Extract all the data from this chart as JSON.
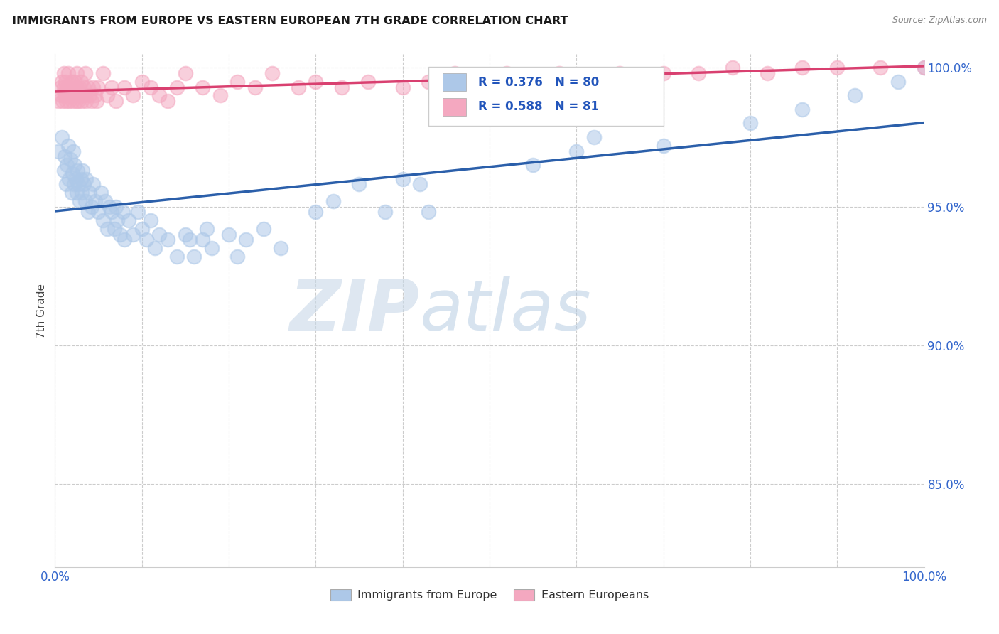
{
  "title": "IMMIGRANTS FROM EUROPE VS EASTERN EUROPEAN 7TH GRADE CORRELATION CHART",
  "source": "Source: ZipAtlas.com",
  "ylabel": "7th Grade",
  "xlim": [
    0.0,
    1.0
  ],
  "ylim": [
    0.82,
    1.005
  ],
  "xtick_positions": [
    0.0,
    0.1,
    0.2,
    0.3,
    0.4,
    0.5,
    0.6,
    0.7,
    0.8,
    0.9,
    1.0
  ],
  "xticklabels": [
    "0.0%",
    "",
    "",
    "",
    "",
    "",
    "",
    "",
    "",
    "",
    "100.0%"
  ],
  "ytick_positions": [
    0.85,
    0.9,
    0.95,
    1.0
  ],
  "yticklabels": [
    "85.0%",
    "90.0%",
    "95.0%",
    "100.0%"
  ],
  "blue_R": 0.376,
  "blue_N": 80,
  "pink_R": 0.588,
  "pink_N": 81,
  "blue_color": "#adc8e8",
  "pink_color": "#f4a8c0",
  "blue_line_color": "#2b5faa",
  "pink_line_color": "#d94070",
  "legend_blue_label": "Immigrants from Europe",
  "legend_pink_label": "Eastern Europeans",
  "watermark_zip": "ZIP",
  "watermark_atlas": "atlas",
  "blue_scatter_x": [
    0.004,
    0.008,
    0.01,
    0.011,
    0.013,
    0.014,
    0.015,
    0.016,
    0.018,
    0.019,
    0.02,
    0.021,
    0.022,
    0.023,
    0.024,
    0.025,
    0.026,
    0.027,
    0.028,
    0.03,
    0.031,
    0.032,
    0.033,
    0.035,
    0.036,
    0.038,
    0.04,
    0.042,
    0.044,
    0.046,
    0.05,
    0.053,
    0.055,
    0.058,
    0.06,
    0.063,
    0.065,
    0.068,
    0.07,
    0.072,
    0.075,
    0.078,
    0.08,
    0.085,
    0.09,
    0.095,
    0.1,
    0.105,
    0.11,
    0.115,
    0.12,
    0.13,
    0.14,
    0.15,
    0.155,
    0.16,
    0.17,
    0.175,
    0.18,
    0.2,
    0.21,
    0.22,
    0.24,
    0.26,
    0.3,
    0.32,
    0.35,
    0.38,
    0.4,
    0.42,
    0.43,
    0.55,
    0.6,
    0.62,
    0.7,
    0.8,
    0.86,
    0.92,
    0.97,
    1.0
  ],
  "blue_scatter_y": [
    0.97,
    0.975,
    0.963,
    0.968,
    0.958,
    0.965,
    0.972,
    0.96,
    0.967,
    0.955,
    0.962,
    0.97,
    0.958,
    0.965,
    0.96,
    0.955,
    0.963,
    0.958,
    0.952,
    0.96,
    0.955,
    0.963,
    0.958,
    0.952,
    0.96,
    0.948,
    0.955,
    0.95,
    0.958,
    0.952,
    0.948,
    0.955,
    0.945,
    0.952,
    0.942,
    0.95,
    0.948,
    0.942,
    0.95,
    0.945,
    0.94,
    0.948,
    0.938,
    0.945,
    0.94,
    0.948,
    0.942,
    0.938,
    0.945,
    0.935,
    0.94,
    0.938,
    0.932,
    0.94,
    0.938,
    0.932,
    0.938,
    0.942,
    0.935,
    0.94,
    0.932,
    0.938,
    0.942,
    0.935,
    0.948,
    0.952,
    0.958,
    0.948,
    0.96,
    0.958,
    0.948,
    0.965,
    0.97,
    0.975,
    0.972,
    0.98,
    0.985,
    0.99,
    0.995,
    1.0
  ],
  "pink_scatter_x": [
    0.004,
    0.006,
    0.007,
    0.008,
    0.009,
    0.01,
    0.01,
    0.011,
    0.012,
    0.013,
    0.014,
    0.015,
    0.015,
    0.016,
    0.017,
    0.018,
    0.019,
    0.02,
    0.02,
    0.021,
    0.022,
    0.023,
    0.024,
    0.025,
    0.025,
    0.026,
    0.027,
    0.028,
    0.029,
    0.03,
    0.031,
    0.032,
    0.033,
    0.034,
    0.035,
    0.036,
    0.038,
    0.04,
    0.042,
    0.044,
    0.046,
    0.048,
    0.05,
    0.055,
    0.06,
    0.065,
    0.07,
    0.08,
    0.09,
    0.1,
    0.11,
    0.12,
    0.13,
    0.14,
    0.15,
    0.17,
    0.19,
    0.21,
    0.23,
    0.25,
    0.28,
    0.3,
    0.33,
    0.36,
    0.4,
    0.43,
    0.46,
    0.49,
    0.52,
    0.55,
    0.58,
    0.62,
    0.65,
    0.7,
    0.74,
    0.78,
    0.82,
    0.86,
    0.9,
    0.95,
    1.0
  ],
  "pink_scatter_y": [
    0.988,
    0.993,
    0.99,
    0.995,
    0.988,
    0.993,
    0.998,
    0.99,
    0.995,
    0.988,
    0.993,
    0.99,
    0.998,
    0.988,
    0.993,
    0.99,
    0.995,
    0.99,
    0.988,
    0.993,
    0.99,
    0.995,
    0.988,
    0.993,
    0.998,
    0.99,
    0.988,
    0.993,
    0.99,
    0.995,
    0.988,
    0.99,
    0.993,
    0.99,
    0.998,
    0.988,
    0.993,
    0.99,
    0.988,
    0.993,
    0.99,
    0.988,
    0.993,
    0.998,
    0.99,
    0.993,
    0.988,
    0.993,
    0.99,
    0.995,
    0.993,
    0.99,
    0.988,
    0.993,
    0.998,
    0.993,
    0.99,
    0.995,
    0.993,
    0.998,
    0.993,
    0.995,
    0.993,
    0.995,
    0.993,
    0.995,
    0.998,
    0.995,
    0.998,
    0.995,
    0.998,
    0.995,
    0.998,
    0.998,
    0.998,
    1.0,
    0.998,
    1.0,
    1.0,
    1.0,
    1.0
  ]
}
